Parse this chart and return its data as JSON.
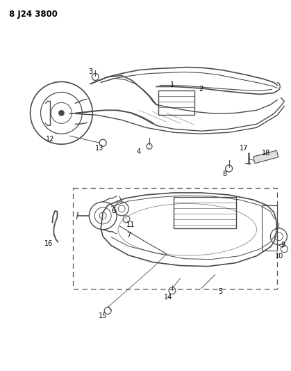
{
  "title": "8 J24 3800",
  "bg": "#ffffff",
  "lc": "#4a4a4a",
  "tc": "#000000",
  "fig_width": 4.19,
  "fig_height": 5.33,
  "dpi": 100
}
